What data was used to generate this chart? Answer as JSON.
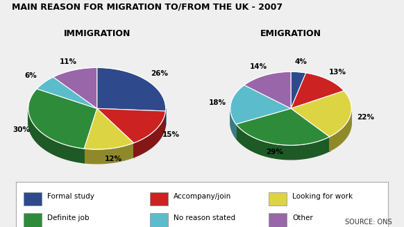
{
  "title": "MAIN REASON FOR MIGRATION TO/FROM THE UK - 2007",
  "immigration_label": "IMMIGRATION",
  "emigration_label": "EMIGRATION",
  "source": "SOURCE: ONS",
  "categories": [
    "Formal study",
    "Accompany/join",
    "Looking for work",
    "Definite job",
    "No reason stated",
    "Other"
  ],
  "colors": [
    "#2e4a8c",
    "#cc2222",
    "#ddd444",
    "#2e8b3a",
    "#5bbccc",
    "#9966aa"
  ],
  "immigration_values": [
    26,
    15,
    12,
    30,
    6,
    11
  ],
  "emigration_values": [
    4,
    13,
    22,
    29,
    18,
    14
  ],
  "immigration_pct": [
    "26%",
    "15%",
    "12%",
    "30%",
    "6%",
    "11%"
  ],
  "emigration_pct": [
    "4%",
    "13%",
    "22%",
    "29%",
    "18%",
    "14%"
  ],
  "background_color": "#efefef",
  "legend_background": "#ffffff",
  "pie_aspect": 0.55,
  "pie_depth": 0.12
}
